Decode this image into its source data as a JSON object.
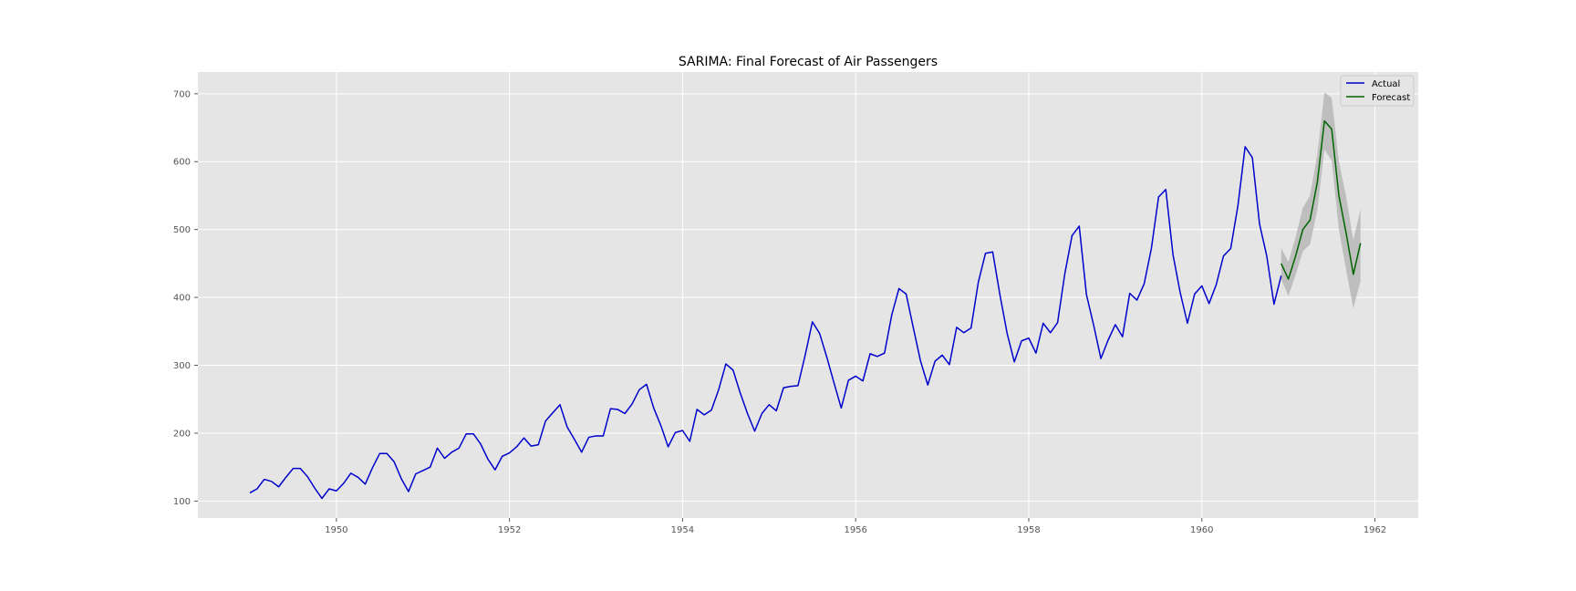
{
  "chart_data": {
    "type": "line",
    "title": "SARIMA: Final Forecast of Air Passengers",
    "xlabel": "",
    "ylabel": "",
    "xlim": [
      1948.4,
      1962.5
    ],
    "ylim": [
      75,
      732
    ],
    "x_ticks": [
      1950,
      1952,
      1954,
      1956,
      1958,
      1960,
      1962
    ],
    "y_ticks": [
      100,
      200,
      300,
      400,
      500,
      600,
      700
    ],
    "grid": true,
    "legend_position": "top-right",
    "colors": {
      "actual": "#0000cc",
      "forecast": "#006400",
      "confidence_band": "#b0b0b0",
      "background": "#e5e5e5"
    },
    "series": [
      {
        "name": "Actual",
        "x_start": "1949-01",
        "frequency": "monthly",
        "values": [
          112,
          118,
          132,
          129,
          121,
          135,
          148,
          148,
          136,
          119,
          104,
          118,
          115,
          126,
          141,
          135,
          125,
          149,
          170,
          170,
          158,
          133,
          114,
          140,
          145,
          150,
          178,
          163,
          172,
          178,
          199,
          199,
          184,
          162,
          146,
          166,
          171,
          180,
          193,
          181,
          183,
          218,
          230,
          242,
          209,
          191,
          172,
          194,
          196,
          196,
          236,
          235,
          229,
          243,
          264,
          272,
          237,
          211,
          180,
          201,
          204,
          188,
          235,
          227,
          234,
          264,
          302,
          293,
          259,
          229,
          203,
          229,
          242,
          233,
          267,
          269,
          270,
          315,
          364,
          347,
          312,
          274,
          237,
          278,
          284,
          277,
          317,
          313,
          318,
          374,
          413,
          405,
          355,
          306,
          271,
          306,
          315,
          301,
          356,
          348,
          355,
          422,
          465,
          467,
          404,
          347,
          305,
          336,
          340,
          318,
          362,
          348,
          363,
          435,
          491,
          505,
          404,
          359,
          310,
          337,
          360,
          342,
          406,
          396,
          420,
          472,
          548,
          559,
          463,
          407,
          362,
          405,
          417,
          391,
          419,
          461,
          472,
          535,
          622,
          606,
          508,
          461,
          390,
          432
        ]
      },
      {
        "name": "Forecast",
        "x_start": "1960-12",
        "frequency": "monthly",
        "values": [
          450,
          427,
          461,
          500,
          514,
          569,
          660,
          648,
          550,
          495,
          434,
          480
        ],
        "lower": [
          427,
          402,
          433,
          468,
          478,
          528,
          618,
          602,
          500,
          441,
          384,
          424
        ],
        "upper": [
          473,
          452,
          489,
          532,
          550,
          610,
          702,
          694,
          600,
          549,
          484,
          530
        ]
      }
    ]
  }
}
